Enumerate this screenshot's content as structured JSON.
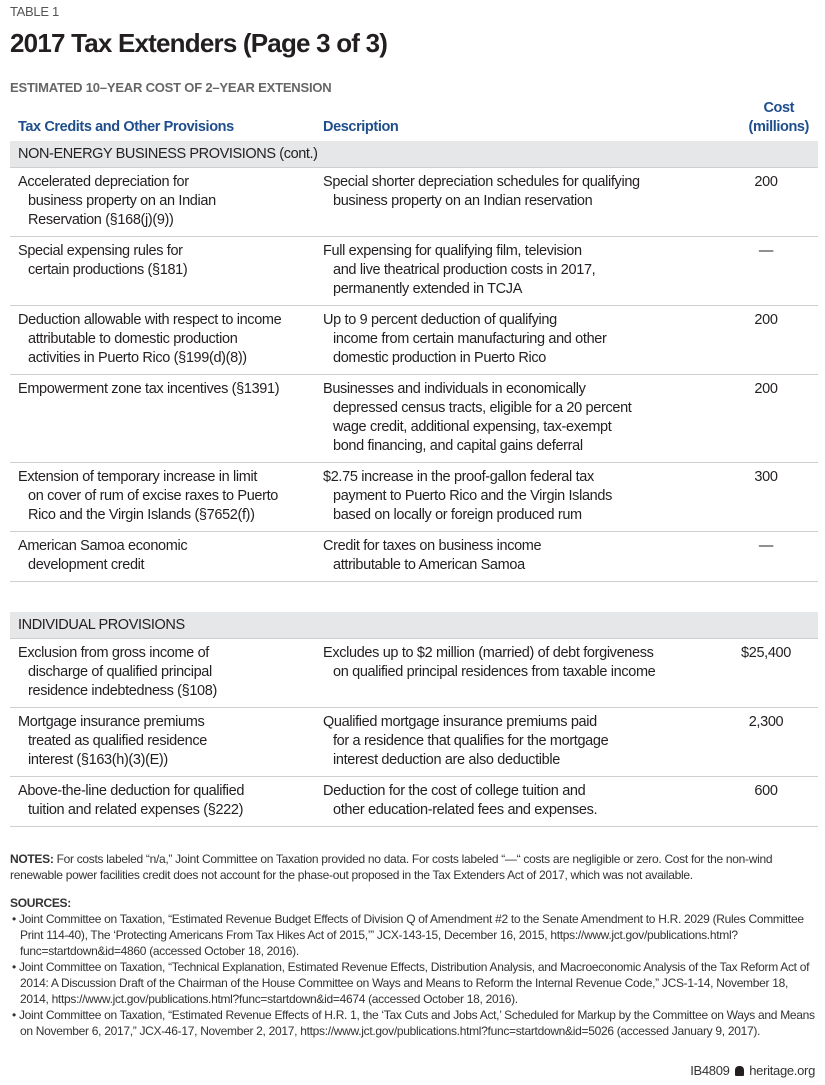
{
  "label": "TABLE 1",
  "title": "2017 Tax Extenders (Page 3 of 3)",
  "subtitle": "ESTIMATED 10–YEAR COST OF 2–YEAR EXTENSION",
  "columns": {
    "provision": "Tax Credits and Other Provisions",
    "description": "Description",
    "cost_line1": "Cost",
    "cost_line2": "(millions)"
  },
  "sections": [
    {
      "name": "NON-ENERGY BUSINESS PROVISIONS",
      "suffix": " (cont.)",
      "rows": [
        {
          "provision": [
            "Accelerated depreciation for",
            "business property on an Indian",
            "Reservation (§168(j)(9))"
          ],
          "description": [
            "Special shorter depreciation schedules for qualifying",
            "business property on an Indian reservation"
          ],
          "cost": "200"
        },
        {
          "provision": [
            "Special expensing rules for",
            "certain productions (§181)"
          ],
          "description": [
            "Full expensing for qualifying film, television",
            "and live theatrical production costs in 2017,",
            "permanently extended in TCJA"
          ],
          "cost": "—"
        },
        {
          "provision": [
            "Deduction allowable with respect to income",
            "attributable to domestic production",
            "activities in Puerto Rico (§199(d)(8))"
          ],
          "description": [
            "Up to 9 percent deduction of qualifying",
            "income from certain manufacturing and other",
            "domestic production in Puerto Rico"
          ],
          "cost": "200"
        },
        {
          "provision": [
            "Empowerment zone tax incentives (§1391)"
          ],
          "description": [
            "Businesses and individuals in economically",
            "depressed census tracts, eligible for a 20 percent",
            "wage credit, additional expensing, tax-exempt",
            "bond financing, and capital gains deferral"
          ],
          "cost": "200"
        },
        {
          "provision": [
            "Extension of temporary increase in limit",
            "on cover of rum of excise raxes to Puerto",
            "Rico and the Virgin Islands (§7652(f))"
          ],
          "description": [
            "$2.75 increase in the proof-gallon federal tax",
            "payment to Puerto Rico and the Virgin Islands",
            "based on locally or foreign produced rum"
          ],
          "cost": "300"
        },
        {
          "provision": [
            "American Samoa economic",
            "development credit"
          ],
          "description": [
            "Credit for taxes on business income",
            "attributable to American Samoa"
          ],
          "cost": "—"
        }
      ]
    },
    {
      "name": "INDIVIDUAL PROVISIONS",
      "suffix": "",
      "rows": [
        {
          "provision": [
            "Exclusion from gross income of",
            "discharge of qualified principal",
            "residence indebtedness (§108)"
          ],
          "description": [
            "Excludes up to $2 million (married) of debt forgiveness",
            "on qualified principal residences from taxable income"
          ],
          "cost": "$25,400"
        },
        {
          "provision": [
            "Mortgage insurance premiums",
            "treated as qualified residence",
            "interest (§163(h)(3)(E))"
          ],
          "description": [
            "Qualified mortgage insurance premiums paid",
            "for a residence that qualifies for the mortgage",
            "interest deduction are also deductible"
          ],
          "cost": "2,300"
        },
        {
          "provision": [
            "Above-the-line deduction for qualified",
            "tuition and related expenses (§222)"
          ],
          "description": [
            "Deduction for the cost of college tuition and",
            "other education-related fees and expenses."
          ],
          "cost": "600"
        }
      ]
    }
  ],
  "notes": {
    "label": "NOTES:",
    "text": " For costs labeled “n/a,” Joint Committee on Taxation provided no data. For costs labeled “—“ costs are negligible or zero. Cost for the non-wind renewable power facilities credit does not account for the phase-out proposed in the Tax Extenders Act of 2017, which was not available."
  },
  "sources": {
    "label": "SOURCES:",
    "items": [
      "Joint Committee on Taxation, “Estimated Revenue Budget Effects of Division Q of Amendment #2 to the Senate Amendment to H.R. 2029 (Rules Committee Print 114-40), The ‘Protecting Americans From Tax Hikes Act of 2015,’” JCX-143-15, December 16, 2015, https://www.jct.gov/publications.html?func=startdown&id=4860 (accessed October 18, 2016).",
      "Joint Committee on Taxation, “Technical Explanation, Estimated Revenue Effects, Distribution Analysis, and Macroeconomic Analysis of the Tax Reform Act of 2014: A Discussion Draft of the Chairman of the House Committee on Ways and Means to Reform the Internal Revenue Code,” JCS-1-14, November 18, 2014, https://www.jct.gov/publications.html?func=startdown&id=4674 (accessed October 18, 2016).",
      "Joint Committee on Taxation, “Estimated Revenue Effects of H.R. 1, the ‘Tax Cuts and Jobs Act,’ Scheduled for Markup by the Committee on Ways and Means on November 6, 2017,” JCX-46-17, November 2, 2017, https://www.jct.gov/publications.html?func=startdown&id=5026 (accessed January 9, 2017)."
    ]
  },
  "footer": {
    "code": "IB4809",
    "site": "heritage.org",
    "icon": "liberty-bell-icon"
  },
  "colors": {
    "header_blue": "#1f4e8c",
    "section_bg": "#e6e7e8"
  }
}
